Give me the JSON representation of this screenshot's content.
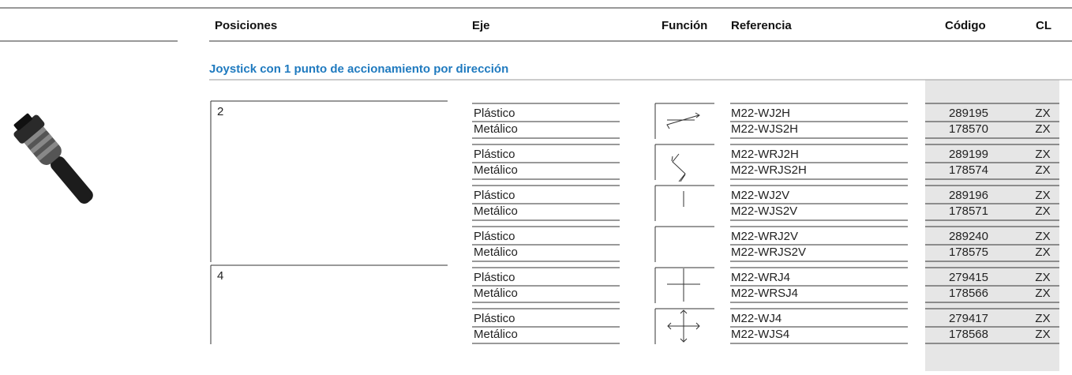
{
  "header": {
    "columns": [
      "Posiciones",
      "Eje",
      "Función",
      "Referencia",
      "Código",
      "CL"
    ]
  },
  "section": {
    "title": "Joystick con 1 punto de accionamiento por dirección"
  },
  "groups": [
    {
      "posiciones": "2",
      "rows": [
        {
          "eje": "Plástico",
          "referencia": "M22-WJ2H",
          "codigo": "289195",
          "cl": "ZX"
        },
        {
          "eje": "Metálico",
          "referencia": "M22-WJS2H",
          "codigo": "178570",
          "cl": "ZX"
        },
        {
          "eje": "Plástico",
          "referencia": "M22-WRJ2H",
          "codigo": "289199",
          "cl": "ZX"
        },
        {
          "eje": "Metálico",
          "referencia": "M22-WRJS2H",
          "codigo": "178574",
          "cl": "ZX"
        },
        {
          "eje": "Plástico",
          "referencia": "M22-WJ2V",
          "codigo": "289196",
          "cl": "ZX"
        },
        {
          "eje": "Metálico",
          "referencia": "M22-WJS2V",
          "codigo": "178571",
          "cl": "ZX"
        },
        {
          "eje": "Plástico",
          "referencia": "M22-WRJ2V",
          "codigo": "289240",
          "cl": "ZX"
        },
        {
          "eje": "Metálico",
          "referencia": "M22-WRJS2V",
          "codigo": "178575",
          "cl": "ZX"
        }
      ]
    },
    {
      "posiciones": "4",
      "rows": [
        {
          "eje": "Plástico",
          "referencia": "M22-WRJ4",
          "codigo": "279415",
          "cl": "ZX"
        },
        {
          "eje": "Metálico",
          "referencia": "M22-WRSJ4",
          "codigo": "178566",
          "cl": "ZX"
        },
        {
          "eje": "Plástico",
          "referencia": "M22-WJ4",
          "codigo": "279417",
          "cl": "ZX"
        },
        {
          "eje": "Metálico",
          "referencia": "M22-WJS4",
          "codigo": "178568",
          "cl": "ZX"
        }
      ]
    }
  ]
}
